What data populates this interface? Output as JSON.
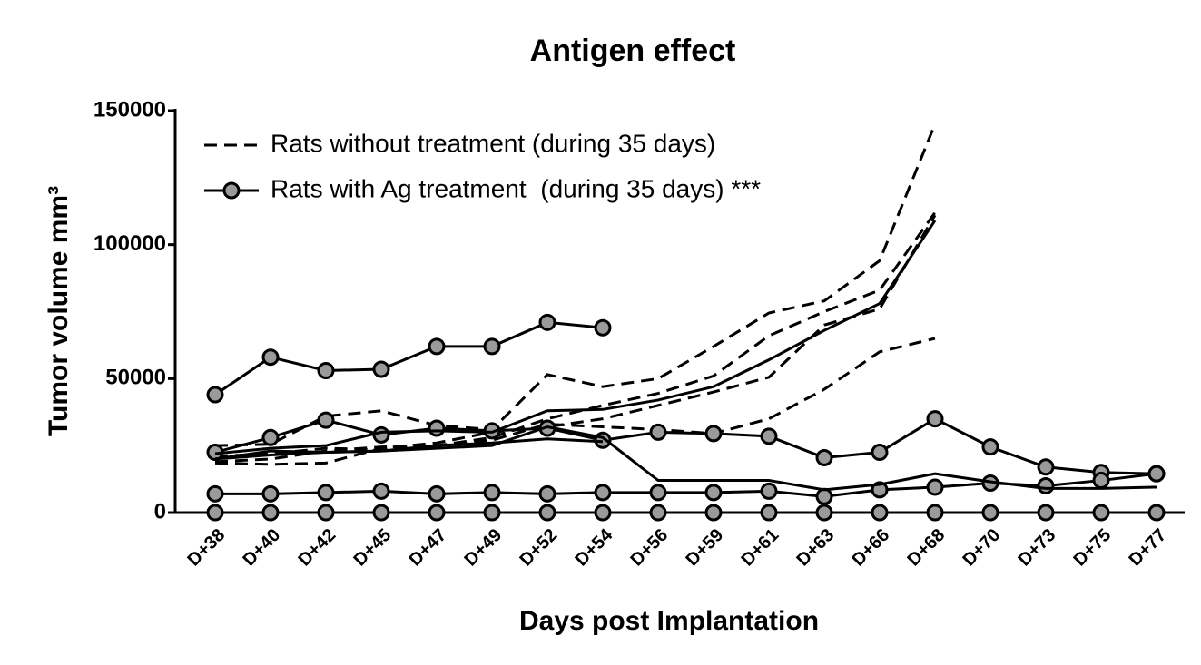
{
  "chart_data": {
    "type": "line",
    "title": "Antigen effect",
    "x_label": "Days post Implantation",
    "y_label": "Tumor volume mm³",
    "categories": [
      "D+38",
      "D+40",
      "D+42",
      "D+45",
      "D+47",
      "D+49",
      "D+52",
      "D+54",
      "D+56",
      "D+59",
      "D+61",
      "D+63",
      "D+66",
      "D+68",
      "D+70",
      "D+73",
      "D+75",
      "D+77"
    ],
    "ylim": [
      0,
      150000
    ],
    "yticks": [
      0,
      50000,
      100000,
      150000
    ],
    "legend": "upper left",
    "series": [
      {
        "name": "Rats without treatment (during 35 days)",
        "color": "#000000",
        "style": "dashed",
        "marker": false,
        "values": [
          25000,
          25500,
          36000,
          38000,
          32500,
          31000,
          51500,
          47000,
          50000,
          62000,
          74500,
          79000,
          94000,
          145000,
          null,
          null,
          null,
          null
        ]
      },
      {
        "color": "#000000",
        "style": "dashed",
        "marker": false,
        "values": [
          19000,
          20000,
          23000,
          24500,
          25000,
          28000,
          35000,
          40000,
          44500,
          51000,
          66000,
          75000,
          83000,
          112000,
          null,
          null,
          null,
          null
        ]
      },
      {
        "color": "#000000",
        "style": "dashed",
        "marker": false,
        "values": [
          18500,
          18000,
          18500,
          24000,
          26000,
          30000,
          32000,
          35000,
          40000,
          45000,
          50500,
          70000,
          76000,
          111000,
          null,
          null,
          null,
          null
        ]
      },
      {
        "color": "#000000",
        "style": "dashed",
        "marker": false,
        "values": [
          21000,
          22000,
          24000,
          23500,
          25000,
          27000,
          33000,
          32000,
          31000,
          29500,
          35000,
          46000,
          60000,
          65000,
          null,
          null,
          null,
          null
        ]
      },
      {
        "name": "Rats with Ag treatment  (during 35 days) ***",
        "color": "#000000",
        "style": "solid",
        "marker": true,
        "values": [
          44000,
          58000,
          53000,
          53500,
          62000,
          62000,
          71000,
          69000,
          null,
          null,
          null,
          null,
          null,
          null,
          null,
          null,
          null,
          null
        ]
      },
      {
        "color": "#000000",
        "style": "solid",
        "marker": true,
        "values": [
          22500,
          28000,
          34500,
          29000,
          31500,
          30500,
          31500,
          27000,
          30000,
          29500,
          28500,
          20500,
          22500,
          35000,
          24500,
          17000,
          15000,
          14500
        ]
      },
      {
        "color": "#000000",
        "style": "solid",
        "marker": true,
        "values": [
          7000,
          7000,
          7500,
          8000,
          7000,
          7500,
          7000,
          7500,
          7500,
          7500,
          8000,
          6000,
          8500,
          9500,
          11000,
          10000,
          12000,
          14500
        ]
      },
      {
        "color": "#000000",
        "style": "solid",
        "marker": true,
        "values": [
          0,
          0,
          0,
          0,
          0,
          0,
          0,
          0,
          0,
          0,
          0,
          0,
          0,
          0,
          0,
          0,
          0,
          0
        ]
      },
      {
        "color": "#000000",
        "style": "solid",
        "marker": false,
        "values": [
          22000,
          24000,
          25000,
          30000,
          30500,
          30000,
          38000,
          38500,
          42000,
          47000,
          57000,
          68000,
          78000,
          109000,
          null,
          null,
          null,
          null
        ]
      },
      {
        "color": "#000000",
        "style": "solid",
        "marker": false,
        "values": [
          20000,
          23000,
          22500,
          23000,
          24000,
          25000,
          32000,
          28000,
          12000,
          12000,
          12000,
          8500,
          10500,
          14500,
          11500,
          9000,
          9000,
          9500
        ]
      },
      {
        "color": "#000000",
        "style": "solid",
        "marker": false,
        "values": [
          20000,
          21500,
          22500,
          23000,
          25000,
          26000,
          27500,
          26500,
          null,
          null,
          null,
          null,
          null,
          null,
          null,
          null,
          null,
          null
        ]
      }
    ]
  }
}
